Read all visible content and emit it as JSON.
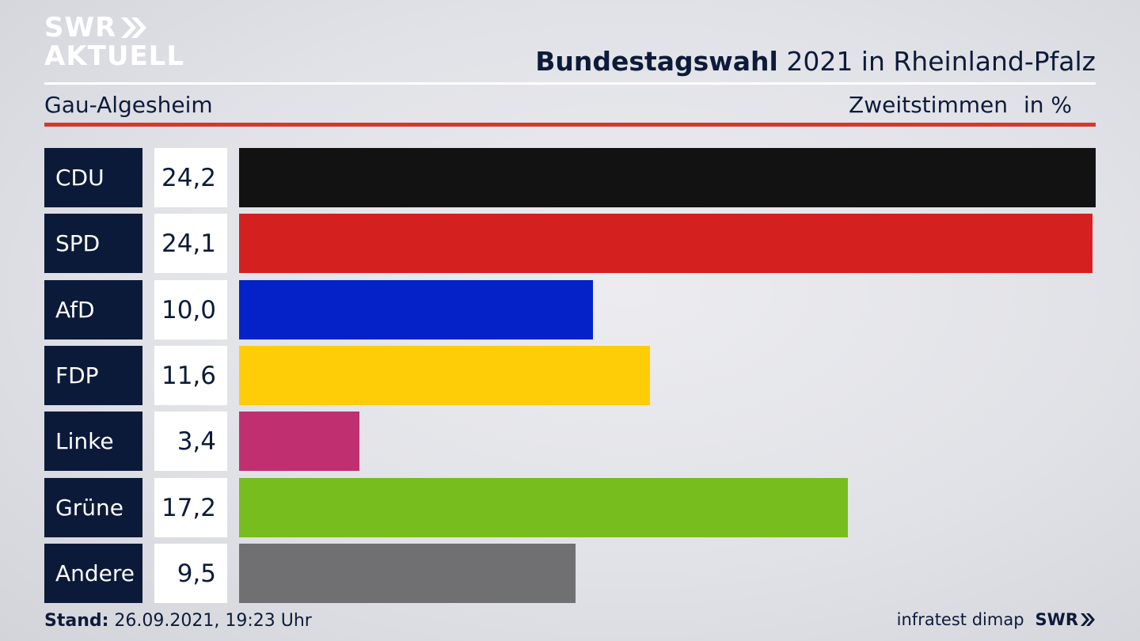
{
  "brand": {
    "logo_line1": "SWR",
    "logo_line2": "AKTUELL",
    "footer_logo": "SWR"
  },
  "header": {
    "title_bold": "Bundestagswahl",
    "title_rest": " 2021 in Rheinland-Pfalz",
    "region": "Gau-Algesheim",
    "measure": "Zweitstimmen",
    "unit": "in %"
  },
  "footer": {
    "stand_label": "Stand:",
    "stand_value": " 26.09.2021, 19:23 Uhr",
    "source": "infratest dimap"
  },
  "colors": {
    "background": "#e3e4e8",
    "label_bg": "#0c1a3a",
    "accent_red": "#d6382c"
  },
  "chart_data": {
    "type": "bar",
    "orientation": "horizontal",
    "categories": [
      "CDU",
      "SPD",
      "AfD",
      "FDP",
      "Linke",
      "Grüne",
      "Andere"
    ],
    "values": [
      24.2,
      24.1,
      10.0,
      11.6,
      3.4,
      17.2,
      9.5
    ],
    "labels": [
      "24,2",
      "24,1",
      "10,0",
      "11,6",
      "3,4",
      "17,2",
      "9,5"
    ],
    "colors": [
      "#121212",
      "#d52020",
      "#0522c9",
      "#ffcc08",
      "#c03070",
      "#77bd1e",
      "#707072"
    ],
    "xlim": [
      0,
      24.2
    ],
    "grid": false,
    "legend": "none"
  }
}
